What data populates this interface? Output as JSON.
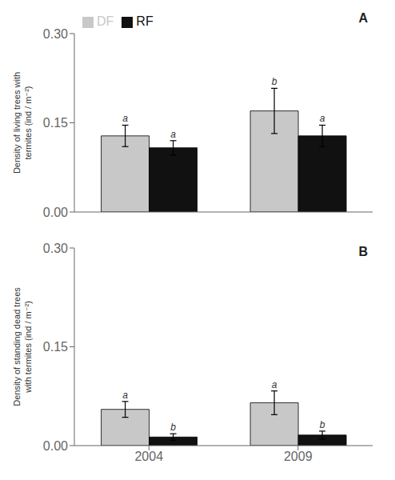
{
  "chart_data": [
    {
      "type": "bar",
      "title": "A",
      "y_label": "Density of living trees with\ntermites (ind / m⁻²)",
      "categories": [
        "2004",
        "2009"
      ],
      "series": [
        {
          "name": "DF",
          "color": "#c8c8c8",
          "values": [
            0.128,
            0.17
          ],
          "errors": [
            0.018,
            0.038
          ],
          "labels": [
            "a",
            "b"
          ]
        },
        {
          "name": "RF",
          "color": "#111111",
          "values": [
            0.108,
            0.128
          ],
          "errors": [
            0.012,
            0.018
          ],
          "labels": [
            "a",
            "a"
          ]
        }
      ],
      "ylim": [
        0,
        0.3
      ],
      "yticks": [
        {
          "value": 0,
          "label": "0.00"
        },
        0.15,
        {
          "value": 0.3,
          "label": "0.30"
        }
      ],
      "legend": "upper left",
      "tick_labels": "y"
    },
    {
      "type": "bar",
      "title": "B",
      "y_label": "Density of standing dead trees\nwith termites (ind / m⁻²)",
      "categories": [
        "2004",
        "2009"
      ],
      "series": [
        {
          "name": "DF",
          "color": "#c8c8c8",
          "values": [
            0.055,
            0.065
          ],
          "errors": [
            0.012,
            0.018
          ],
          "labels": [
            "a",
            "a"
          ]
        },
        {
          "name": "RF",
          "color": "#111111",
          "values": [
            0.013,
            0.016
          ],
          "errors": [
            0.005,
            0.006
          ],
          "labels": [
            "b",
            "b"
          ]
        }
      ],
      "ylim": [
        0,
        0.3
      ],
      "yticks": [
        {
          "value": 0,
          "label": "0.00"
        },
        0.15,
        {
          "value": 0.3,
          "label": "0.30"
        }
      ]
    }
  ]
}
